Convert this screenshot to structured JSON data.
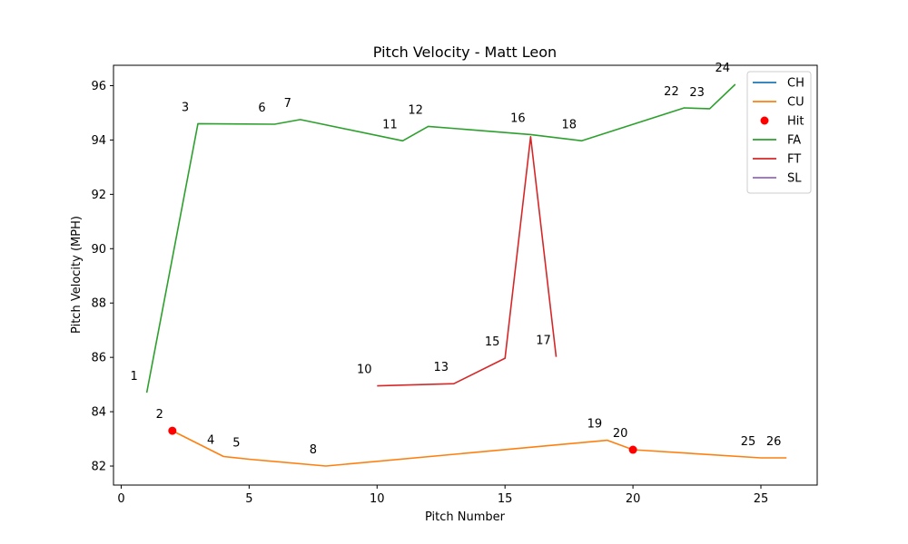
{
  "chart_data": {
    "type": "line",
    "title": "Pitch Velocity - Matt Leon",
    "xlabel": "Pitch Number",
    "ylabel": "Pitch Velocity (MPH)",
    "xlim": [
      -0.3,
      27.2
    ],
    "ylim": [
      81.3,
      96.75
    ],
    "xticks": [
      0,
      5,
      10,
      15,
      20,
      25
    ],
    "yticks": [
      82,
      84,
      86,
      88,
      90,
      92,
      94,
      96
    ],
    "legend_position": "top-right",
    "series": [
      {
        "name": "CH",
        "kind": "line",
        "color": "#1f77b4",
        "points": []
      },
      {
        "name": "CU",
        "kind": "line",
        "color": "#ff7f0e",
        "points": [
          [
            2,
            83.3
          ],
          [
            4,
            82.35
          ],
          [
            5,
            82.25
          ],
          [
            8,
            82.0
          ],
          [
            19,
            82.95
          ],
          [
            20,
            82.6
          ],
          [
            25,
            82.3
          ],
          [
            26,
            82.3
          ]
        ]
      },
      {
        "name": "Hit",
        "kind": "scatter",
        "color": "#ff0000",
        "points": [
          [
            2,
            83.3
          ],
          [
            20,
            82.6
          ]
        ]
      },
      {
        "name": "FA",
        "kind": "line",
        "color": "#2ca02c",
        "points": [
          [
            1,
            84.7
          ],
          [
            3,
            94.6
          ],
          [
            6,
            94.58
          ],
          [
            7,
            94.75
          ],
          [
            11,
            93.97
          ],
          [
            12,
            94.5
          ],
          [
            16,
            94.2
          ],
          [
            18,
            93.97
          ],
          [
            22,
            95.18
          ],
          [
            23,
            95.15
          ],
          [
            24,
            96.05
          ]
        ]
      },
      {
        "name": "FT",
        "kind": "line",
        "color": "#d62728",
        "points": [
          [
            10,
            84.95
          ],
          [
            13,
            85.03
          ],
          [
            15,
            85.97
          ],
          [
            16,
            94.12
          ],
          [
            17,
            86.02
          ]
        ]
      },
      {
        "name": "SL",
        "kind": "line",
        "color": "#9467bd",
        "points": []
      }
    ],
    "pitch_labels": [
      {
        "text": "1",
        "x": 1,
        "y": 84.7
      },
      {
        "text": "2",
        "x": 2,
        "y": 83.3
      },
      {
        "text": "3",
        "x": 3,
        "y": 94.6
      },
      {
        "text": "4",
        "x": 4,
        "y": 82.35
      },
      {
        "text": "5",
        "x": 5,
        "y": 82.25
      },
      {
        "text": "6",
        "x": 6,
        "y": 94.58
      },
      {
        "text": "7",
        "x": 7,
        "y": 94.75
      },
      {
        "text": "8",
        "x": 8,
        "y": 82.0
      },
      {
        "text": "10",
        "x": 10,
        "y": 84.95
      },
      {
        "text": "11",
        "x": 11,
        "y": 93.97
      },
      {
        "text": "12",
        "x": 12,
        "y": 94.5
      },
      {
        "text": "13",
        "x": 13,
        "y": 85.03
      },
      {
        "text": "15",
        "x": 15,
        "y": 85.97
      },
      {
        "text": "16",
        "x": 16,
        "y": 94.2
      },
      {
        "text": "17",
        "x": 17,
        "y": 86.02
      },
      {
        "text": "18",
        "x": 18,
        "y": 93.97
      },
      {
        "text": "19",
        "x": 19,
        "y": 82.95
      },
      {
        "text": "20",
        "x": 20,
        "y": 82.6
      },
      {
        "text": "22",
        "x": 22,
        "y": 95.18
      },
      {
        "text": "23",
        "x": 23,
        "y": 95.15
      },
      {
        "text": "24",
        "x": 24,
        "y": 96.05
      },
      {
        "text": "25",
        "x": 25,
        "y": 82.3
      },
      {
        "text": "26",
        "x": 26,
        "y": 82.3
      }
    ]
  }
}
